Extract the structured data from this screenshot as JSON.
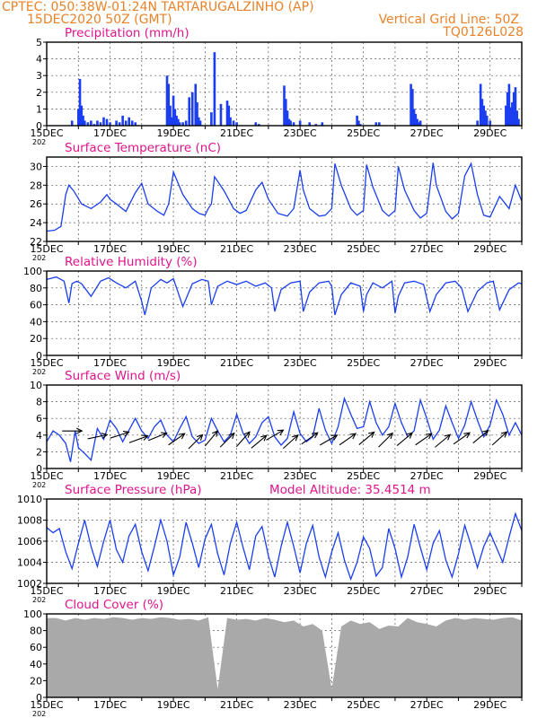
{
  "header": {
    "line1": "CPTEC:   050:38W-01:24N  TARTARUGALZINHO (AP)",
    "line2_left": "15DEC2020 50Z (GMT)",
    "line2_right": "Vertical Grid Line: 50Z",
    "line3_right": "TQ0126L028"
  },
  "colors": {
    "header": "#e8822a",
    "title": "#e0158c",
    "series": "#1a3ef0",
    "cloud": "#a9a9a9",
    "grid": "#555555"
  },
  "chart_data": [
    {
      "type": "bar",
      "title": "Precipitation (mm/h)",
      "ylim": [
        0,
        5
      ],
      "yticks": [
        0,
        1,
        2,
        3,
        4,
        5
      ],
      "x_range_days": [
        0,
        15
      ],
      "xtick_labels": [
        "15DEC",
        "17DEC",
        "19DEC",
        "21DEC",
        "23DEC",
        "25DEC",
        "27DEC",
        "29DEC"
      ],
      "year_fragment": "202",
      "x": [
        0.8,
        1.0,
        1.05,
        1.1,
        1.15,
        1.2,
        1.3,
        1.4,
        1.5,
        1.6,
        1.7,
        1.8,
        1.9,
        2.0,
        2.2,
        2.3,
        2.4,
        2.5,
        2.6,
        2.7,
        2.8,
        3.8,
        3.85,
        3.9,
        3.95,
        4.0,
        4.05,
        4.1,
        4.15,
        4.2,
        4.3,
        4.4,
        4.5,
        4.6,
        4.7,
        4.75,
        4.8,
        4.85,
        5.2,
        5.3,
        5.5,
        5.7,
        5.75,
        5.8,
        5.9,
        6.0,
        6.6,
        6.7,
        7.5,
        7.55,
        7.6,
        7.65,
        7.7,
        7.8,
        8.0,
        8.3,
        8.5,
        8.7,
        9.8,
        9.85,
        9.9,
        10.4,
        10.5,
        11.5,
        11.55,
        11.6,
        11.65,
        11.7,
        11.75,
        11.8,
        13.6,
        13.7,
        13.75,
        13.8,
        13.85,
        13.9,
        14.0,
        14.5,
        14.55,
        14.6,
        14.65,
        14.7,
        14.75,
        14.8,
        14.85,
        14.9
      ],
      "values": [
        0.3,
        1.0,
        2.8,
        1.2,
        0.6,
        0.3,
        0.2,
        0.3,
        0.1,
        0.3,
        0.2,
        0.5,
        0.4,
        0.2,
        0.3,
        0.2,
        0.6,
        0.3,
        0.5,
        0.3,
        0.2,
        3.0,
        2.5,
        1.2,
        0.5,
        1.8,
        1.0,
        0.6,
        0.4,
        0.2,
        0.2,
        0.3,
        1.7,
        2.0,
        2.5,
        1.4,
        0.5,
        0.3,
        0.8,
        4.4,
        1.3,
        1.5,
        1.2,
        0.5,
        0.3,
        0.2,
        0.2,
        0.1,
        2.4,
        1.6,
        0.9,
        0.4,
        0.3,
        0.2,
        0.3,
        0.2,
        0.1,
        0.2,
        0.6,
        0.3,
        0.1,
        0.2,
        0.2,
        2.5,
        2.2,
        1.0,
        0.7,
        0.4,
        0.2,
        0.3,
        0.3,
        2.5,
        1.6,
        1.2,
        0.9,
        0.6,
        0.3,
        1.2,
        2.0,
        2.5,
        1.1,
        1.4,
        2.0,
        2.3,
        0.9,
        0.4
      ]
    },
    {
      "type": "line",
      "title": "Surface Temperature (nC)",
      "ylim": [
        22,
        31
      ],
      "yticks": [
        22,
        24,
        26,
        28,
        30
      ],
      "x": [
        0,
        0.25,
        0.45,
        0.6,
        0.7,
        0.85,
        1.1,
        1.4,
        1.7,
        1.9,
        2.0,
        2.2,
        2.5,
        2.8,
        3.0,
        3.2,
        3.5,
        3.7,
        3.85,
        4.0,
        4.3,
        4.6,
        4.8,
        5.0,
        5.1,
        5.2,
        5.3,
        5.6,
        5.9,
        6.1,
        6.3,
        6.6,
        6.8,
        7.0,
        7.3,
        7.6,
        7.8,
        8.0,
        8.1,
        8.3,
        8.6,
        8.8,
        9.0,
        9.1,
        9.3,
        9.6,
        9.8,
        10.0,
        10.1,
        10.3,
        10.6,
        10.8,
        11.0,
        11.1,
        11.3,
        11.6,
        11.8,
        12.0,
        12.2,
        12.3,
        12.6,
        12.8,
        13.0,
        13.2,
        13.4,
        13.6,
        13.8,
        14.0,
        14.3,
        14.6,
        14.8,
        15.0
      ],
      "values": [
        23.1,
        23.2,
        23.6,
        27.0,
        28.0,
        27.4,
        26.0,
        25.5,
        26.2,
        27.0,
        26.5,
        26.0,
        25.2,
        27.2,
        28.2,
        26.0,
        25.2,
        24.8,
        26.0,
        29.4,
        27.0,
        25.5,
        25.0,
        24.8,
        25.5,
        26.0,
        28.9,
        27.4,
        25.5,
        25.0,
        25.3,
        27.5,
        28.3,
        26.5,
        25.0,
        24.7,
        25.5,
        29.6,
        27.5,
        25.5,
        24.7,
        24.8,
        25.5,
        30.3,
        28.0,
        25.5,
        24.8,
        25.3,
        30.2,
        27.8,
        25.3,
        24.7,
        25.3,
        30.0,
        27.5,
        25.3,
        24.5,
        25.0,
        30.4,
        28.0,
        25.2,
        24.4,
        25.0,
        29.0,
        30.3,
        27.0,
        24.8,
        24.6,
        26.8,
        25.5,
        28.0,
        26.3
      ]
    },
    {
      "type": "line",
      "title": "Relative Humidity (%)",
      "ylim": [
        0,
        100
      ],
      "yticks": [
        0,
        20,
        40,
        60,
        80,
        100
      ],
      "x": [
        0,
        0.3,
        0.55,
        0.7,
        0.8,
        0.95,
        1.1,
        1.4,
        1.7,
        1.95,
        2.2,
        2.5,
        2.8,
        3.0,
        3.1,
        3.3,
        3.6,
        3.8,
        4.0,
        4.1,
        4.3,
        4.6,
        4.9,
        5.1,
        5.2,
        5.4,
        5.7,
        6.0,
        6.3,
        6.6,
        6.9,
        7.1,
        7.2,
        7.4,
        7.7,
        8.0,
        8.1,
        8.3,
        8.6,
        8.9,
        9.0,
        9.1,
        9.3,
        9.6,
        9.9,
        10.0,
        10.1,
        10.3,
        10.6,
        10.9,
        11.0,
        11.1,
        11.3,
        11.6,
        11.9,
        12.1,
        12.3,
        12.6,
        12.9,
        13.1,
        13.3,
        13.6,
        13.9,
        14.1,
        14.3,
        14.6,
        14.9,
        15.0
      ],
      "values": [
        90,
        93,
        88,
        62,
        85,
        88,
        85,
        70,
        88,
        92,
        86,
        80,
        88,
        64,
        48,
        80,
        90,
        86,
        91,
        80,
        58,
        85,
        90,
        88,
        60,
        82,
        88,
        84,
        88,
        82,
        86,
        80,
        52,
        78,
        86,
        88,
        52,
        75,
        86,
        88,
        82,
        48,
        72,
        86,
        82,
        52,
        72,
        86,
        80,
        88,
        50,
        70,
        86,
        88,
        84,
        52,
        72,
        86,
        88,
        80,
        52,
        76,
        86,
        88,
        54,
        78,
        86,
        85
      ]
    },
    {
      "type": "line",
      "title": "Surface Wind (m/s)",
      "ylim": [
        0,
        10
      ],
      "yticks": [
        0,
        2,
        4,
        6,
        8,
        10
      ],
      "x": [
        0,
        0.2,
        0.4,
        0.6,
        0.75,
        0.9,
        1.0,
        1.2,
        1.4,
        1.6,
        1.8,
        2.0,
        2.2,
        2.4,
        2.6,
        2.8,
        3.0,
        3.2,
        3.4,
        3.6,
        3.8,
        4.0,
        4.2,
        4.4,
        4.6,
        4.8,
        5.0,
        5.2,
        5.4,
        5.6,
        5.8,
        6.0,
        6.2,
        6.4,
        6.6,
        6.8,
        7.0,
        7.2,
        7.4,
        7.6,
        7.8,
        8.0,
        8.2,
        8.4,
        8.6,
        8.8,
        9.0,
        9.2,
        9.4,
        9.6,
        9.8,
        10.0,
        10.2,
        10.4,
        10.6,
        10.8,
        11.0,
        11.2,
        11.4,
        11.6,
        11.8,
        12.0,
        12.2,
        12.4,
        12.6,
        12.8,
        13.0,
        13.2,
        13.4,
        13.6,
        13.8,
        14.0,
        14.2,
        14.4,
        14.6,
        14.8,
        15.0
      ],
      "values": [
        3.2,
        4.5,
        4.0,
        3.0,
        0.8,
        4.5,
        2.5,
        1.8,
        1.0,
        4.8,
        3.5,
        5.8,
        4.8,
        3.2,
        4.6,
        6.0,
        4.5,
        3.6,
        5.0,
        5.8,
        4.0,
        3.2,
        4.8,
        6.2,
        3.8,
        3.0,
        3.4,
        6.0,
        4.5,
        3.2,
        4.0,
        6.5,
        4.2,
        3.0,
        3.8,
        5.5,
        6.2,
        3.8,
        2.8,
        3.6,
        6.8,
        4.2,
        3.2,
        3.8,
        7.2,
        4.6,
        3.0,
        5.0,
        8.4,
        6.5,
        4.8,
        5.0,
        8.0,
        5.5,
        4.0,
        5.0,
        7.8,
        5.5,
        3.8,
        4.5,
        8.2,
        6.0,
        3.5,
        4.6,
        7.5,
        5.5,
        3.6,
        5.2,
        8.0,
        5.8,
        3.8,
        5.2,
        8.2,
        6.5,
        4.0,
        5.5,
        4.0
      ],
      "arrow_x": [
        0.8,
        1.6,
        2.3,
        2.9,
        3.5,
        4.1,
        4.7,
        5.2,
        5.7,
        6.2,
        6.7,
        7.2,
        7.7,
        8.3,
        8.9,
        9.5,
        10.1,
        10.7,
        11.3,
        11.9,
        12.5,
        13.1,
        13.7,
        14.3
      ],
      "arrow_speed": [
        4.5,
        3.8,
        4.0,
        3.5,
        3.8,
        3.5,
        3.2,
        3.6,
        3.4,
        3.5,
        3.2,
        4.0,
        3.2,
        3.6,
        3.4,
        3.5,
        3.6,
        3.4,
        3.5,
        3.5,
        3.3,
        3.6,
        3.8,
        3.6
      ],
      "arrow_bearing_deg": [
        270,
        258,
        252,
        250,
        248,
        235,
        225,
        220,
        225,
        222,
        230,
        240,
        228,
        235,
        240,
        235,
        230,
        225,
        230,
        235,
        230,
        235,
        230,
        228
      ]
    },
    {
      "type": "line",
      "title": "Surface Pressure (hPa)",
      "annotation": "Model Altitude: 35.4514 m",
      "ylim": [
        1002,
        1010
      ],
      "yticks": [
        1002,
        1004,
        1006,
        1008,
        1010
      ],
      "x": [
        0,
        0.2,
        0.4,
        0.6,
        0.8,
        1.0,
        1.2,
        1.4,
        1.6,
        1.8,
        2.0,
        2.2,
        2.4,
        2.6,
        2.8,
        3.0,
        3.2,
        3.4,
        3.6,
        3.8,
        4.0,
        4.2,
        4.4,
        4.6,
        4.8,
        5.0,
        5.2,
        5.4,
        5.6,
        5.8,
        6.0,
        6.2,
        6.4,
        6.6,
        6.8,
        7.0,
        7.2,
        7.4,
        7.6,
        7.8,
        8.0,
        8.2,
        8.4,
        8.6,
        8.8,
        9.0,
        9.2,
        9.4,
        9.6,
        9.8,
        10.0,
        10.2,
        10.4,
        10.6,
        10.8,
        11.0,
        11.2,
        11.4,
        11.6,
        11.8,
        12.0,
        12.2,
        12.4,
        12.6,
        12.8,
        13.0,
        13.2,
        13.4,
        13.6,
        13.8,
        14.0,
        14.2,
        14.4,
        14.6,
        14.8,
        15.0
      ],
      "values": [
        1007.3,
        1006.8,
        1007.2,
        1005.0,
        1003.4,
        1005.8,
        1008.0,
        1005.5,
        1003.6,
        1006.0,
        1008.0,
        1005.2,
        1004.0,
        1006.5,
        1007.6,
        1005.0,
        1003.2,
        1005.5,
        1008.0,
        1006.0,
        1002.8,
        1004.5,
        1007.8,
        1005.8,
        1003.5,
        1006.2,
        1007.6,
        1004.8,
        1002.8,
        1005.8,
        1007.8,
        1005.4,
        1003.3,
        1006.5,
        1007.4,
        1004.6,
        1002.6,
        1005.5,
        1007.8,
        1005.5,
        1003.0,
        1005.8,
        1007.5,
        1004.5,
        1002.6,
        1005.0,
        1006.8,
        1004.2,
        1002.4,
        1004.0,
        1006.4,
        1005.3,
        1002.7,
        1003.5,
        1007.2,
        1005.3,
        1002.6,
        1004.5,
        1007.6,
        1005.4,
        1003.3,
        1005.8,
        1007.0,
        1004.2,
        1002.6,
        1004.8,
        1007.5,
        1005.6,
        1003.5,
        1005.5,
        1006.8,
        1005.4,
        1004.0,
        1006.4,
        1008.6,
        1007.0
      ]
    },
    {
      "type": "area",
      "title": "Cloud Cover (%)",
      "ylim": [
        0,
        100
      ],
      "yticks": [
        0,
        20,
        40,
        60,
        80,
        100
      ],
      "x": [
        0,
        0.3,
        0.6,
        0.9,
        1.2,
        1.5,
        1.8,
        2.1,
        2.4,
        2.7,
        3.0,
        3.3,
        3.6,
        3.9,
        4.2,
        4.5,
        4.8,
        5.1,
        5.4,
        5.7,
        6.0,
        6.3,
        6.6,
        6.9,
        7.2,
        7.5,
        7.8,
        8.1,
        8.4,
        8.7,
        9.0,
        9.3,
        9.6,
        9.9,
        10.2,
        10.5,
        10.8,
        11.1,
        11.4,
        11.7,
        12.0,
        12.3,
        12.6,
        12.9,
        13.2,
        13.5,
        13.8,
        14.1,
        14.4,
        14.7,
        15.0
      ],
      "values": [
        95,
        95,
        92,
        95,
        93,
        95,
        94,
        96,
        95,
        93,
        95,
        94,
        96,
        95,
        93,
        94,
        92,
        96,
        10,
        95,
        93,
        94,
        92,
        95,
        93,
        90,
        92,
        85,
        88,
        80,
        10,
        85,
        92,
        88,
        90,
        82,
        86,
        85,
        95,
        90,
        88,
        85,
        92,
        95,
        93,
        95,
        94,
        93,
        95,
        96,
        92
      ]
    }
  ]
}
